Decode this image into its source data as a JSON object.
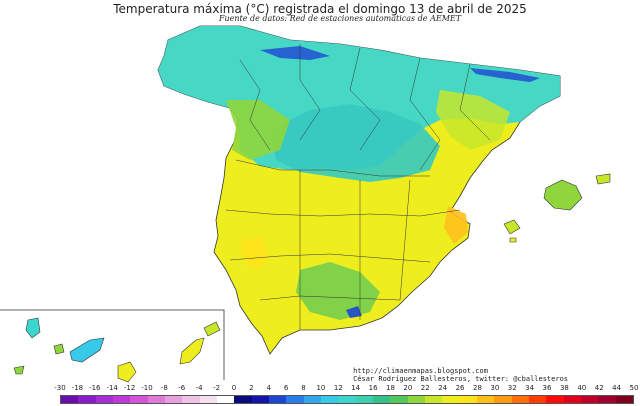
{
  "map": {
    "title": "Temperatura máxima (°C) registrada el domingo 13 de abril de 2025",
    "subtitle": "Fuente de datos: Red de estaciones automáticas de AEMET",
    "credits": {
      "url": "http://climaenmapas.blogspot.com",
      "author": "César Rodríguez Ballesteros, twitter: @cballesteros"
    },
    "regions_shown": [
      "Península Ibérica (España)",
      "Islas Baleares",
      "Islas Canarias"
    ]
  },
  "legend": {
    "labels": [
      "-30",
      "-18",
      "-16",
      "-14",
      "-12",
      "-10",
      "-8",
      "-6",
      "-4",
      "-2",
      "0",
      "2",
      "4",
      "6",
      "8",
      "10",
      "12",
      "14",
      "16",
      "18",
      "20",
      "22",
      "24",
      "26",
      "28",
      "30",
      "32",
      "34",
      "36",
      "38",
      "40",
      "42",
      "44",
      "50"
    ],
    "colors": [
      "#6a0dad",
      "#8a1cc9",
      "#a52ed6",
      "#c03ad9",
      "#d456d8",
      "#df7ad9",
      "#e7a0dd",
      "#efc3e6",
      "#f5dff0",
      "#ffffff",
      "#0a0a7a",
      "#1414a8",
      "#1e46d2",
      "#2a7de6",
      "#33a8ee",
      "#36c9e8",
      "#3dd6cf",
      "#3ecfb0",
      "#36c08a",
      "#52c65a",
      "#8fd63c",
      "#c6e62a",
      "#eeee1e",
      "#fde31b",
      "#ffc01a",
      "#ff9a12",
      "#ff6f0c",
      "#ff3b08",
      "#ff0a0a",
      "#e0001c",
      "#c0002a",
      "#a00030",
      "#800020"
    ]
  }
}
